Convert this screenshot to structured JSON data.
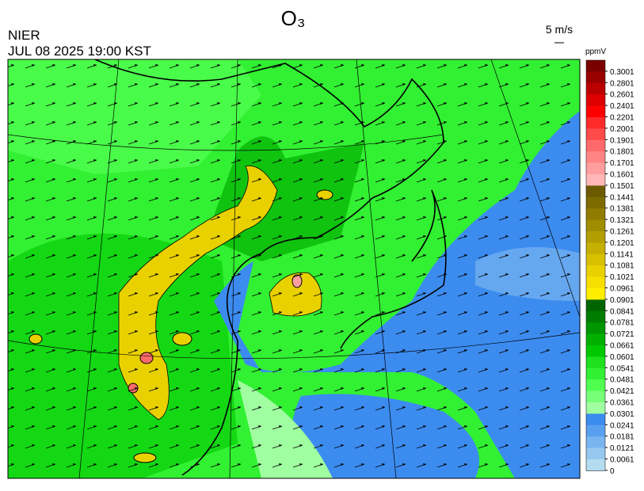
{
  "header": {
    "title": "O₃",
    "agency": "NIER",
    "datetime": "JUL 08 2025 19:00 KST",
    "wind_scale": "5 m/s"
  },
  "colorbar": {
    "unit": "ppmV",
    "labels": [
      0.3001,
      0.2801,
      0.2601,
      0.2401,
      0.2201,
      0.2001,
      0.1901,
      0.1801,
      0.1701,
      0.1601,
      0.1501,
      0.1441,
      0.1381,
      0.1321,
      0.1261,
      0.1201,
      0.1141,
      0.1081,
      0.1021,
      0.0961,
      0.0901,
      0.0841,
      0.0781,
      0.0721,
      0.0661,
      0.0601,
      0.0541,
      0.0481,
      0.0421,
      0.0361,
      0.0301,
      0.0241,
      0.0181,
      0.0121,
      0.0061,
      0
    ],
    "colors": [
      "#7a0000",
      "#9a0000",
      "#bb0000",
      "#dd0000",
      "#ff0000",
      "#ff2a2a",
      "#ff4a4a",
      "#ff6a6a",
      "#ff8585",
      "#ff9e9e",
      "#ffb6b6",
      "#6b5a00",
      "#7d6b00",
      "#8f7c00",
      "#a18d00",
      "#b39e00",
      "#c5af00",
      "#d7c000",
      "#e9d100",
      "#f7e000",
      "#ffee00",
      "#006400",
      "#007d00",
      "#009600",
      "#00af00",
      "#00c800",
      "#1ee11e",
      "#32f032",
      "#50ff50",
      "#78ff78",
      "#a0ffa0",
      "#3c8cf0",
      "#5aa0f0",
      "#78b4f0",
      "#96c8f0",
      "#b4dcf0"
    ]
  }
}
